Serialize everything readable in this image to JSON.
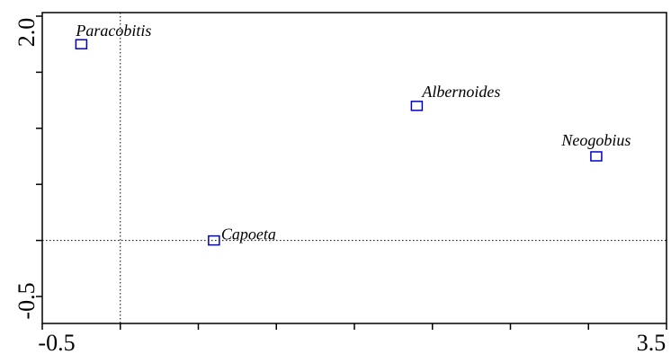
{
  "chart_data": {
    "type": "scatter",
    "title": "",
    "xlabel": "",
    "ylabel": "",
    "xlim": [
      -0.5,
      3.5
    ],
    "ylim": [
      -0.5,
      2.0
    ],
    "x_tick_labels": [
      "-0.5",
      "3.5"
    ],
    "y_tick_labels": [
      "2.0",
      "-0.5"
    ],
    "reference_lines": {
      "x": 0.0,
      "y": 0.0
    },
    "marker": "open-square",
    "marker_color": "#0000cc",
    "points": [
      {
        "label": "Paracobitis",
        "x": -0.25,
        "y": 1.75
      },
      {
        "label": "Albernoides",
        "x": 1.9,
        "y": 1.2
      },
      {
        "label": "Neogobius",
        "x": 3.05,
        "y": 0.75
      },
      {
        "label": "Capoeta",
        "x": 0.6,
        "y": 0.0
      }
    ]
  }
}
